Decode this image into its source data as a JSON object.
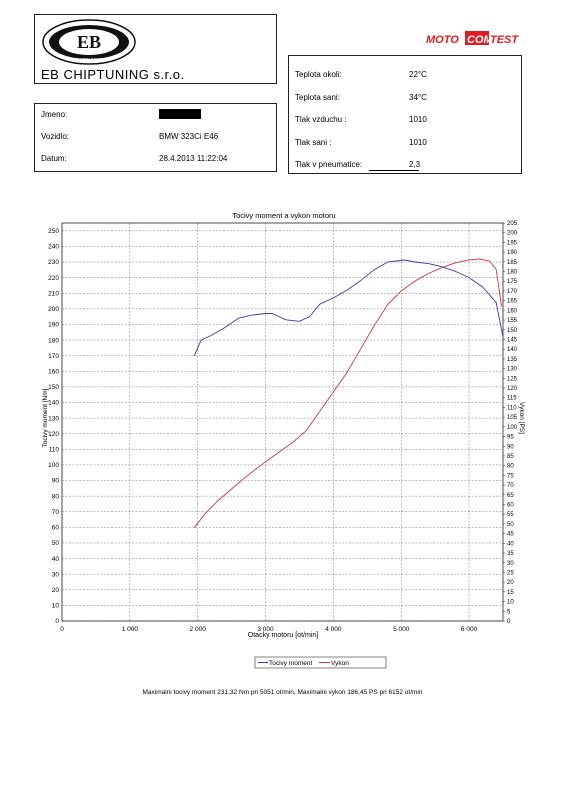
{
  "company": "EB CHIPTUNING s.r.o.",
  "brand": "MOTOCOMTEST",
  "brand_parts": {
    "left": "MOTO",
    "mid": "COM",
    "right": "TEST"
  },
  "logo": {
    "center": "EB",
    "bottom": "CHIPTUNING"
  },
  "info": {
    "rows": [
      {
        "label": "Jmeno:",
        "value": ""
      },
      {
        "label": "Vozidlo:",
        "value": "BMW 323Ci E46"
      },
      {
        "label": "Datum:",
        "value": "28.4.2013 11:22:04"
      }
    ]
  },
  "conditions": {
    "rows": [
      {
        "label": "Teplota okoli:",
        "value": "22°C"
      },
      {
        "label": "Teplota sani:",
        "value": "34°C"
      },
      {
        "label": "Tlak vzduchu :",
        "value": "1010"
      },
      {
        "label": "Tlak sani :",
        "value": "1010"
      },
      {
        "label": "Tlak v pneumatice:",
        "value": "2,3"
      }
    ]
  },
  "footer": "Maximalni tocivy moment 231,32 Nm pri 5051 ot/min,  Maximalni vykon 186,45 PS pri 6152 ot/min",
  "colors": {
    "torque": "#3b3bb0",
    "power": "#c83c3c",
    "brand_red": "#e21b23"
  },
  "chart_data": {
    "type": "line",
    "title": "Tocivy moment a vykon motoru",
    "xlabel": "Otacky motoru [ot/min]",
    "ylabel": "Tocivy moment [Nm]",
    "ylabel2": "Vykon [PS]",
    "xlim": [
      0,
      6500
    ],
    "ylim": [
      0,
      255
    ],
    "y2lim": [
      0,
      205
    ],
    "xticks": [
      0,
      1000,
      2000,
      3000,
      4000,
      5000,
      6000
    ],
    "xtick_labels": [
      "0",
      "1 000",
      "2 000",
      "3 000",
      "4 000",
      "5 000",
      "6 000"
    ],
    "yticks_step": 10,
    "y2ticks_step": 5,
    "grid": true,
    "legend_position": "bottom",
    "series": [
      {
        "name": "Tocivy moment",
        "axis": "left",
        "x": [
          1950,
          2050,
          2200,
          2400,
          2600,
          2800,
          3000,
          3100,
          3300,
          3500,
          3650,
          3800,
          4000,
          4200,
          4400,
          4600,
          4800,
          5051,
          5200,
          5400,
          5600,
          5800,
          6000,
          6200,
          6400,
          6500
        ],
        "y": [
          170,
          180,
          183,
          188,
          194,
          196,
          197,
          197,
          193,
          192,
          195,
          203,
          207,
          212,
          218,
          225,
          230,
          231.3,
          230,
          229,
          227,
          224,
          220,
          214,
          204,
          182
        ]
      },
      {
        "name": "Vykon",
        "axis": "right",
        "x": [
          1950,
          2100,
          2300,
          2500,
          2700,
          3000,
          3200,
          3400,
          3600,
          3800,
          4000,
          4200,
          4400,
          4600,
          4800,
          5000,
          5200,
          5400,
          5600,
          5800,
          6000,
          6152,
          6300,
          6400,
          6480
        ],
        "y": [
          48,
          55,
          62,
          68,
          74,
          82,
          87,
          92,
          98,
          108,
          118,
          128,
          140,
          152,
          163,
          170,
          175,
          179,
          182,
          184.5,
          186,
          186.45,
          185.5,
          181,
          162
        ]
      }
    ]
  }
}
